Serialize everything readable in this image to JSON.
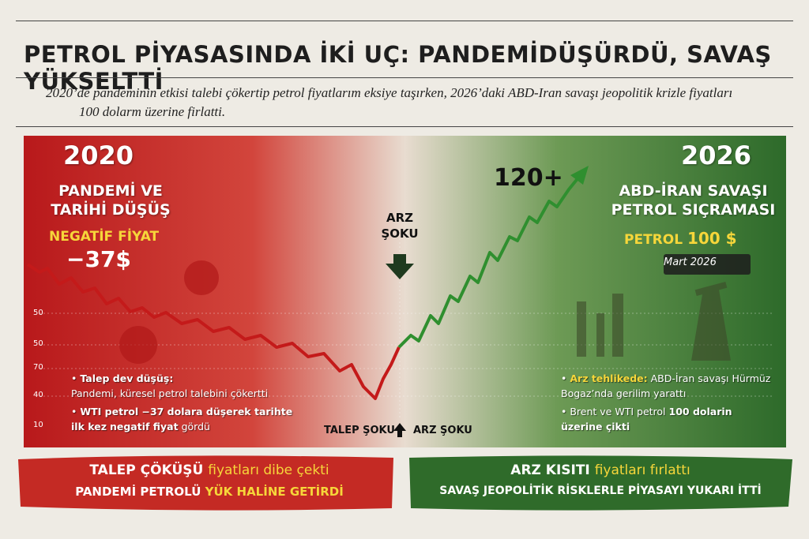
{
  "header": {
    "title": "PETROL PİYASASINDA İKİ UÇ: PANDEMİDÜŞÜRDÜ, SAVAŞ YÜKSELTTİ",
    "subtitle_line1": "2020’de pandeminin etkisi talebi çökertip petrol fiyatlarım eksiye taşırken, 2026’daki ABD-Iran savaşı jeopolitik krizle fiyatları",
    "subtitle_line2": "100 dolarm üzerine firlatti."
  },
  "left": {
    "year": "2020",
    "heading": [
      "PANDEMİ VE",
      "TARİHİ DÜŞÜŞ"
    ],
    "label": "NEGATİF FİYAT",
    "price": "−37$",
    "bullets": [
      {
        "bold": "Talep dev düşüş:",
        "text": "Pandemi, küresel petrol talebini çökertti"
      },
      {
        "bold": "WTI petrol −37 dolara düşerek tarihte ilk kez",
        "emph": "negatif fiyat",
        "text": "gördü"
      }
    ]
  },
  "axis_labels": [
    "50",
    "50",
    "70",
    "40",
    "10"
  ],
  "center": {
    "top_shock": "ARZ ŞOKU",
    "peak": "120+",
    "bottom_left": "TALEP ŞOKU",
    "bottom_right": "ARZ ŞOKU"
  },
  "right": {
    "year": "2026",
    "heading": [
      "ABD-İRAN SAVAŞI",
      "PETROL SIÇRAMASI"
    ],
    "label": "PETROL",
    "price": "100 $",
    "date": "Mart 2026",
    "bullets": [
      {
        "bold": "Arz tehlikede:",
        "text": "ABD-İran savaşı Hürmüz Bogaz’nda gerilim yarattı"
      },
      {
        "bold": "Brent ve WTI petrol",
        "emph": "100 dolarin üzerine çikti"
      }
    ]
  },
  "footer": {
    "left_line1": {
      "bold": "TALEP ÇÖKÜŞÜ",
      "text": "fiyatları dibe çekti"
    },
    "left_line2": {
      "bold": "PANDEMİ PETROLÜ",
      "emph": "YÜK HALİNE GETİRDİ"
    },
    "right_line1": {
      "bold": "ARZ KISITI",
      "text": "fiyatları fırlattı"
    },
    "right_line2": "SAVAŞ JEOPOLİTİK RİSKLERLE PİYASAYI YUKARI İTTİ"
  }
}
